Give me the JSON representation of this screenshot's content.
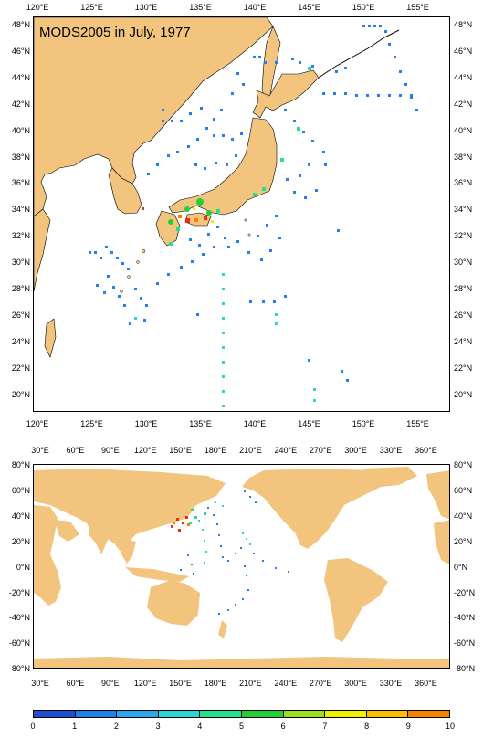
{
  "top_map": {
    "title": "MODS2005 in July, 1977",
    "lon_labels": [
      "120°E",
      "125°E",
      "130°E",
      "135°E",
      "140°E",
      "145°E",
      "150°E",
      "155°E"
    ],
    "lat_labels": [
      "48°N",
      "46°N",
      "44°N",
      "42°N",
      "40°N",
      "38°N",
      "36°N",
      "34°N",
      "32°N",
      "30°N",
      "28°N",
      "26°N",
      "24°N",
      "22°N",
      "20°N"
    ]
  },
  "bottom_map": {
    "lon_labels": [
      "30°E",
      "60°E",
      "90°E",
      "120°E",
      "150°E",
      "180°E",
      "210°E",
      "240°E",
      "270°E",
      "300°E",
      "330°E",
      "360°E"
    ],
    "lat_labels": [
      "80°N",
      "60°N",
      "40°N",
      "20°N",
      "0°N",
      "-20°N",
      "-40°N",
      "-60°N",
      "-80°N"
    ]
  },
  "colorbar": {
    "labels": [
      "0",
      "1",
      "2",
      "3",
      "4",
      "5",
      "6",
      "7",
      "8",
      "9",
      "10"
    ],
    "colors": [
      "#1f4ed6",
      "#1f80f0",
      "#2aa8ee",
      "#2cd6d6",
      "#22e08c",
      "#22d036",
      "#9ae01c",
      "#f2f000",
      "#f8c000",
      "#f68000",
      "#e83010"
    ]
  },
  "colors": {
    "land": "#f2c47e",
    "ocean": "#ffffff"
  }
}
